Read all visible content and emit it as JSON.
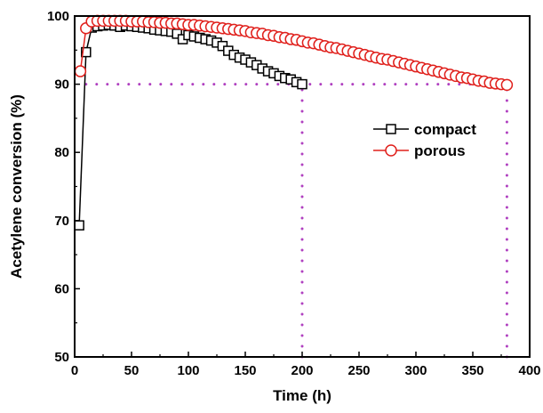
{
  "chart_data": {
    "type": "scatter",
    "xlabel": "Time (h)",
    "ylabel": "Acetylene conversion (%)",
    "xlim": [
      0,
      400
    ],
    "ylim": [
      50,
      100
    ],
    "x_ticks": [
      0,
      50,
      100,
      150,
      200,
      250,
      300,
      350,
      400
    ],
    "y_ticks": [
      50,
      60,
      70,
      80,
      90,
      100
    ],
    "grid": false,
    "legend_position": "right",
    "reference_lines": [
      {
        "type": "horizontal",
        "y": 90,
        "x_from": 10,
        "x_to": 380,
        "color": "#b040c0"
      },
      {
        "type": "vertical",
        "x": 200,
        "y_from": 50,
        "y_to": 90,
        "color": "#b040c0"
      },
      {
        "type": "vertical",
        "x": 380,
        "y_from": 50,
        "y_to": 90,
        "color": "#b040c0"
      }
    ],
    "series": [
      {
        "name": "compact",
        "marker": "square",
        "color": "#000000",
        "x": [
          4,
          10,
          15,
          20,
          25,
          30,
          35,
          40,
          45,
          50,
          55,
          60,
          65,
          70,
          75,
          80,
          85,
          90,
          95,
          100,
          105,
          110,
          115,
          120,
          125,
          130,
          135,
          140,
          145,
          150,
          155,
          160,
          165,
          170,
          175,
          180,
          185,
          190,
          195,
          200
        ],
        "y": [
          69.3,
          94.7,
          98.3,
          98.5,
          98.6,
          98.7,
          98.6,
          98.4,
          98.6,
          98.5,
          98.4,
          98.3,
          98.2,
          98.0,
          97.9,
          97.8,
          97.7,
          97.4,
          96.6,
          97.2,
          97.0,
          96.8,
          96.6,
          96.4,
          96.1,
          95.6,
          94.9,
          94.3,
          93.9,
          93.6,
          93.2,
          92.8,
          92.3,
          91.9,
          91.6,
          91.2,
          90.9,
          90.7,
          90.3,
          90.0
        ]
      },
      {
        "name": "porous",
        "marker": "circle",
        "color": "#e0201c",
        "x": [
          5,
          10,
          15,
          20,
          25,
          30,
          35,
          40,
          45,
          50,
          55,
          60,
          65,
          70,
          75,
          80,
          85,
          90,
          95,
          100,
          105,
          110,
          115,
          120,
          125,
          130,
          135,
          140,
          145,
          150,
          155,
          160,
          165,
          170,
          175,
          180,
          185,
          190,
          195,
          200,
          205,
          210,
          215,
          220,
          225,
          230,
          235,
          240,
          245,
          250,
          255,
          260,
          265,
          270,
          275,
          280,
          285,
          290,
          295,
          300,
          305,
          310,
          315,
          320,
          325,
          330,
          335,
          340,
          345,
          350,
          355,
          360,
          365,
          370,
          375,
          380
        ],
        "y": [
          91.9,
          98.2,
          99.2,
          99.3,
          99.3,
          99.3,
          99.3,
          99.3,
          99.3,
          99.2,
          99.2,
          99.2,
          99.1,
          99.1,
          99.0,
          99.0,
          98.9,
          98.9,
          98.8,
          98.7,
          98.7,
          98.6,
          98.5,
          98.4,
          98.3,
          98.2,
          98.1,
          98.0,
          97.9,
          97.8,
          97.6,
          97.5,
          97.4,
          97.2,
          97.1,
          96.9,
          96.8,
          96.6,
          96.5,
          96.3,
          96.1,
          96.0,
          95.8,
          95.6,
          95.4,
          95.3,
          95.1,
          94.9,
          94.7,
          94.5,
          94.3,
          94.1,
          93.9,
          93.7,
          93.6,
          93.4,
          93.2,
          93.0,
          92.8,
          92.6,
          92.4,
          92.2,
          92.0,
          91.8,
          91.6,
          91.4,
          91.2,
          91.0,
          90.9,
          90.7,
          90.5,
          90.4,
          90.2,
          90.1,
          90.0,
          89.9
        ]
      }
    ]
  }
}
